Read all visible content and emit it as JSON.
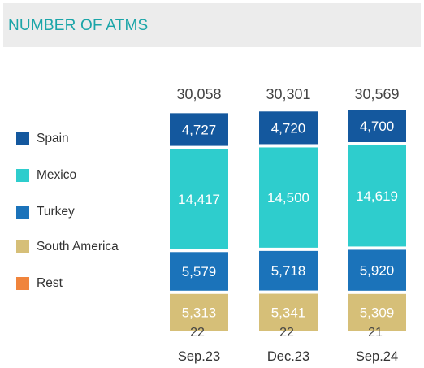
{
  "header": {
    "title": "NUMBER OF ATMS"
  },
  "chart_data": {
    "type": "bar",
    "stacked": true,
    "title": "NUMBER OF ATMS",
    "categories": [
      "Sep.23",
      "Dec.23",
      "Sep.24"
    ],
    "totals": [
      "30,058",
      "30,301",
      "30,569"
    ],
    "series": [
      {
        "name": "Rest",
        "color": "#f0843c",
        "values": [
          22,
          22,
          21
        ],
        "labels": [
          "22",
          "22",
          "21"
        ]
      },
      {
        "name": "South America",
        "color": "#d6bf78",
        "values": [
          5313,
          5341,
          5309
        ],
        "labels": [
          "5,313",
          "5,341",
          "5,309"
        ]
      },
      {
        "name": "Turkey",
        "color": "#1b73ba",
        "values": [
          5579,
          5718,
          5920
        ],
        "labels": [
          "5,579",
          "5,718",
          "5,920"
        ]
      },
      {
        "name": "Mexico",
        "color": "#2ecdcd",
        "values": [
          14417,
          14500,
          14619
        ],
        "labels": [
          "14,417",
          "14,500",
          "14,619"
        ]
      },
      {
        "name": "Spain",
        "color": "#14589e",
        "values": [
          4727,
          4720,
          4700
        ],
        "labels": [
          "4,727",
          "4,720",
          "4,700"
        ]
      }
    ],
    "legend_order": [
      "Spain",
      "Mexico",
      "Turkey",
      "South America",
      "Rest"
    ],
    "legend_position": "left",
    "grid": false
  }
}
